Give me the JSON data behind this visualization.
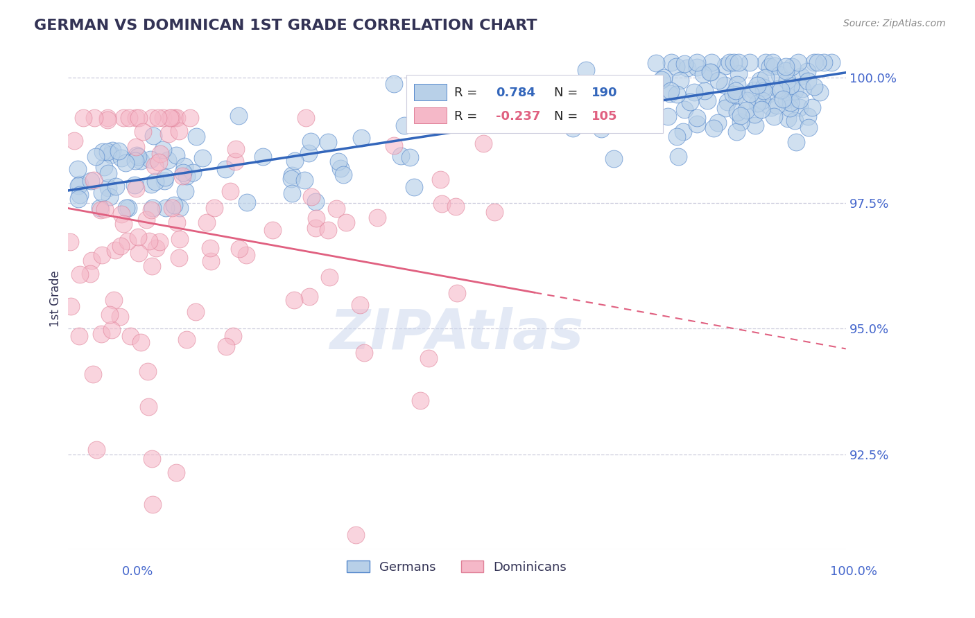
{
  "title": "GERMAN VS DOMINICAN 1ST GRADE CORRELATION CHART",
  "ylabel": "1st Grade",
  "source": "Source: ZipAtlas.com",
  "yticks": [
    0.925,
    0.95,
    0.975,
    1.0
  ],
  "ytick_labels": [
    "92.5%",
    "95.0%",
    "97.5%",
    "100.0%"
  ],
  "ylim": [
    0.906,
    1.006
  ],
  "xlim": [
    0.0,
    1.0
  ],
  "german_R": 0.784,
  "german_N": 190,
  "dominican_R": -0.237,
  "dominican_N": 105,
  "blue_color": "#b8d0e8",
  "blue_edge_color": "#5588cc",
  "blue_line_color": "#3366bb",
  "pink_color": "#f5b8c8",
  "pink_edge_color": "#e08098",
  "pink_line_color": "#e06080",
  "title_color": "#333355",
  "axis_color": "#4466cc",
  "watermark_color": "#ccd8ee",
  "background_color": "#ffffff",
  "grid_color": "#ccccdd",
  "german_intercept": 0.9775,
  "german_slope": 0.0235,
  "dominican_intercept": 0.974,
  "dominican_slope": -0.028
}
